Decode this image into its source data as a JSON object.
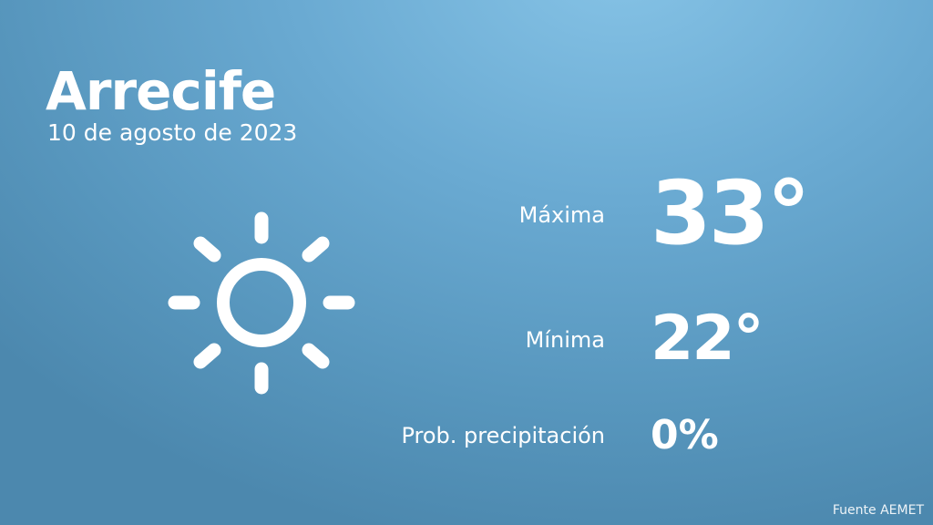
{
  "location": {
    "city": "Arrecife",
    "date": "10 de agosto de 2023"
  },
  "weather": {
    "icon": "sun-icon",
    "max_label": "Máxima",
    "max_value": "33°",
    "min_label": "Mínima",
    "min_value": "22°",
    "precip_label": "Prob. precipitación",
    "precip_value": "0%"
  },
  "source": "Fuente AEMET",
  "colors": {
    "background_top": "#86c3e6",
    "background_bottom": "#4c88ae",
    "text": "#ffffff"
  }
}
